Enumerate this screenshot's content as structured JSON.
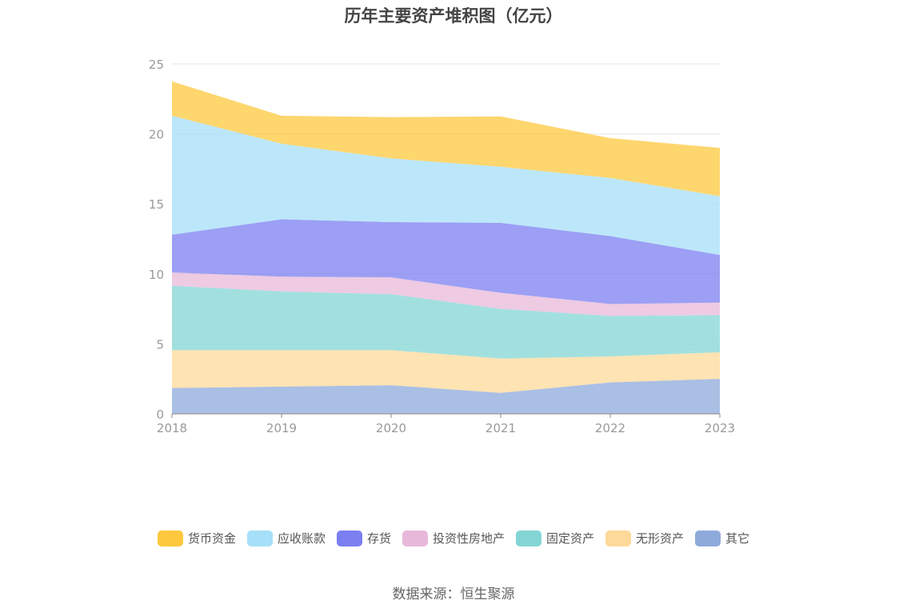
{
  "chart_data": {
    "type": "area",
    "stacked": true,
    "title": "历年主要资产堆积图（亿元）",
    "categories": [
      "2018",
      "2019",
      "2020",
      "2021",
      "2022",
      "2023"
    ],
    "ylim": [
      0,
      25
    ],
    "yticks": [
      0,
      5,
      10,
      15,
      20,
      25
    ],
    "xlabel": "",
    "ylabel": "",
    "legend_position": "bottom",
    "series": [
      {
        "name": "其它",
        "color": "#8eaadb",
        "values": [
          1.85,
          1.95,
          2.05,
          1.5,
          2.25,
          2.5
        ]
      },
      {
        "name": "无形资产",
        "color": "#fdd99a",
        "values": [
          2.7,
          2.6,
          2.5,
          2.45,
          1.85,
          1.9
        ]
      },
      {
        "name": "固定资产",
        "color": "#83d5d5",
        "values": [
          4.6,
          4.2,
          4.0,
          3.55,
          2.9,
          2.65
        ]
      },
      {
        "name": "投资性房地产",
        "color": "#e8b8da",
        "values": [
          0.95,
          1.05,
          1.2,
          1.15,
          0.85,
          0.9
        ]
      },
      {
        "name": "存货",
        "color": "#7b7ff0",
        "values": [
          2.7,
          4.1,
          3.95,
          5.0,
          4.85,
          3.4
        ]
      },
      {
        "name": "应收账款",
        "color": "#a6dff8",
        "values": [
          8.5,
          5.4,
          4.55,
          4.0,
          4.15,
          4.2
        ]
      },
      {
        "name": "货币资金",
        "color": "#fdc83d",
        "values": [
          2.45,
          2.0,
          2.95,
          3.6,
          2.85,
          3.45
        ]
      }
    ]
  },
  "legend_order": [
    "货币资金",
    "应收账款",
    "存货",
    "投资性房地产",
    "固定资产",
    "无形资产",
    "其它"
  ],
  "source": "数据来源：恒生聚源"
}
